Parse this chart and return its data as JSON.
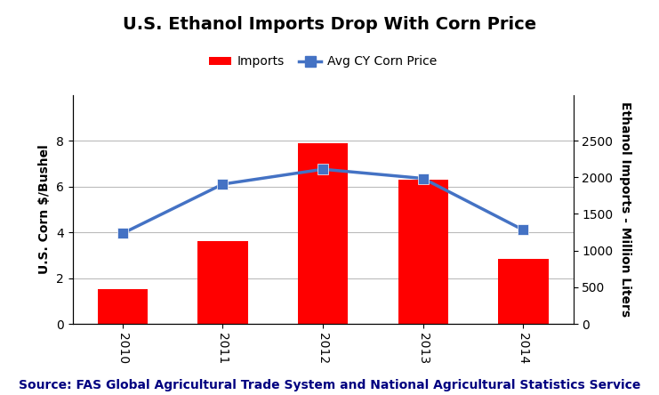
{
  "title": "U.S. Ethanol Imports Drop With Corn Price",
  "years": [
    2010,
    2011,
    2012,
    2013,
    2014
  ],
  "corn_price": [
    3.95,
    6.1,
    6.75,
    6.35,
    4.1
  ],
  "bar_heights_left": [
    1.5,
    3.6,
    7.9,
    6.3,
    2.85
  ],
  "bar_color": "#FF0000",
  "line_color": "#4472C4",
  "ylabel_left": "U.S. Corn $/Bushel",
  "ylabel_right": "Ethanol Imports - Million Liters",
  "ylim_left": [
    0,
    10
  ],
  "ylim_right": [
    0,
    3125
  ],
  "yticks_left": [
    0,
    2,
    4,
    6,
    8
  ],
  "yticks_right": [
    0,
    500,
    1000,
    1500,
    2000,
    2500
  ],
  "source_text": "Source: FAS Global Agricultural Trade System and National Agricultural Statistics Service",
  "legend_labels": [
    "Imports",
    "Avg CY Corn Price"
  ],
  "title_fontsize": 14,
  "label_fontsize": 10,
  "tick_fontsize": 10,
  "source_fontsize": 10,
  "background_color": "#FFFFFF",
  "grid_color": "#BBBBBB"
}
